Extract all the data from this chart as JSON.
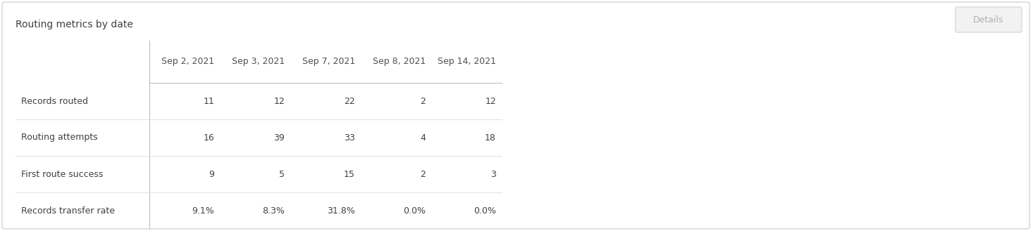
{
  "title": "Routing metrics by date",
  "button_label": "Details",
  "col_headers": [
    "Sep 2, 2021",
    "Sep 3, 2021",
    "Sep 7, 2021",
    "Sep 8, 2021",
    "Sep 14, 2021"
  ],
  "rows": [
    [
      "Records routed",
      "11",
      "12",
      "22",
      "2",
      "12"
    ],
    [
      "Routing attempts",
      "16",
      "39",
      "33",
      "4",
      "18"
    ],
    [
      "First route success",
      "9",
      "5",
      "15",
      "2",
      "3"
    ],
    [
      "Records transfer rate",
      "9.1%",
      "8.3%",
      "31.8%",
      "0.0%",
      "0.0%"
    ]
  ],
  "bg_color": "#ffffff",
  "outer_border_color": "#d4d4d4",
  "sep_line_color": "#c0c0c0",
  "row_line_color": "#e2e2e2",
  "title_fontsize": 10,
  "header_fontsize": 9,
  "cell_fontsize": 9,
  "title_color": "#404040",
  "header_color": "#505050",
  "cell_color": "#404040",
  "button_bg": "#f2f2f2",
  "button_border": "#d0d0d0",
  "button_text_color": "#b0b0b0",
  "button_fontsize": 9
}
